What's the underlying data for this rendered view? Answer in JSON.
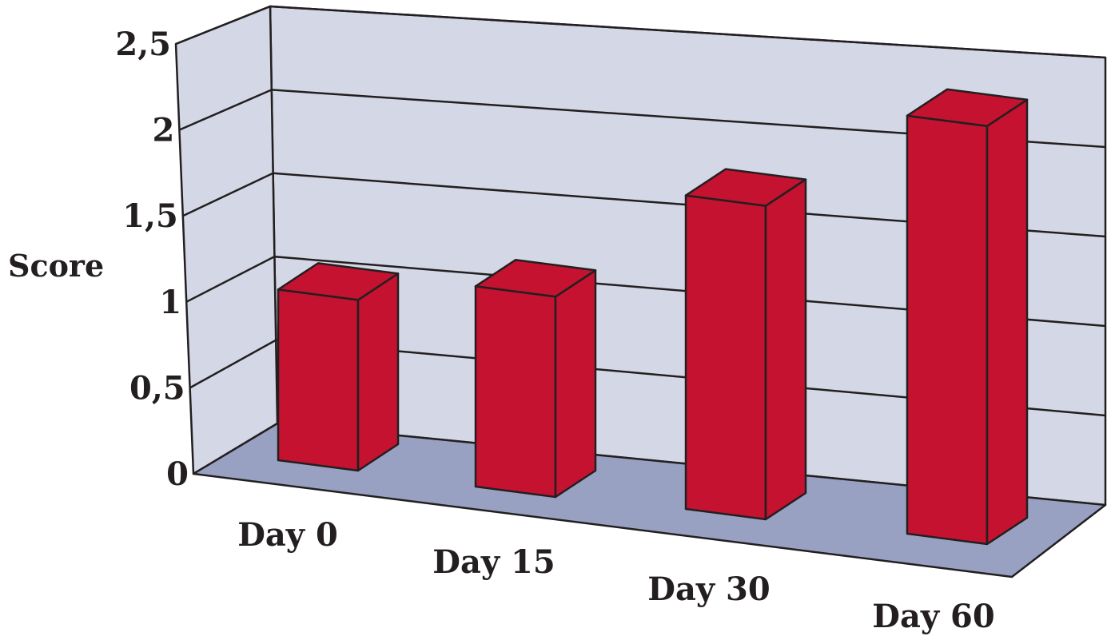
{
  "chart_data": {
    "type": "bar",
    "title": "",
    "xlabel": "",
    "ylabel": "Score",
    "categories": [
      "Day 0",
      "Day 15",
      "Day 30",
      "Day 60"
    ],
    "values": [
      0.98,
      1.15,
      1.8,
      2.4
    ],
    "ylim": [
      0,
      2.5
    ],
    "yticks": [
      "0",
      "0,5",
      "1",
      "1,5",
      "2",
      "2,5"
    ],
    "grid": true,
    "three_d": true,
    "colors": {
      "bar_front": "#c41230",
      "bar_side": "#c41230",
      "bar_top": "#c41230",
      "wall": "#d4d8e6",
      "floor": "#99a1c2",
      "line": "#231f20"
    }
  }
}
